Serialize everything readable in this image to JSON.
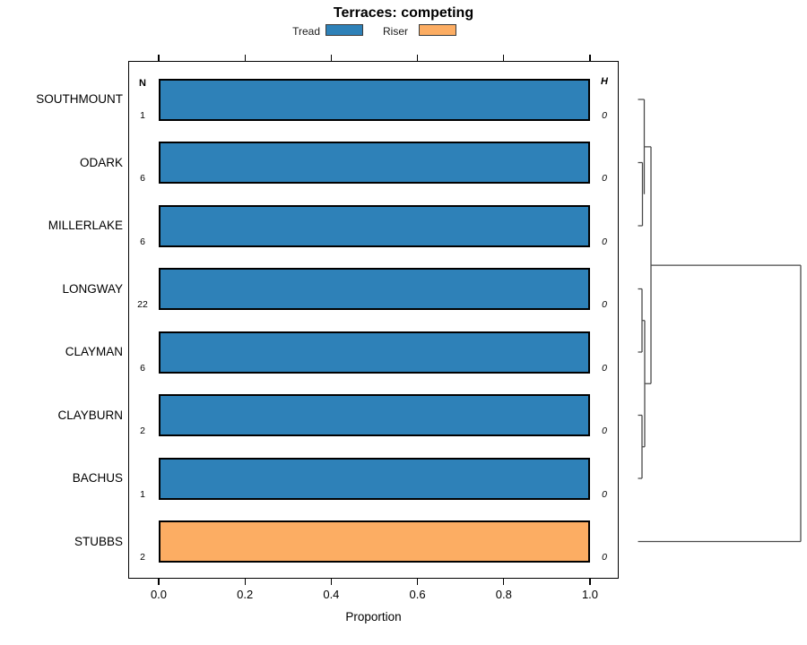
{
  "title": "Terraces: competing",
  "xlabel": "Proportion",
  "axis": {
    "x_ticks": [
      "0.0",
      "0.2",
      "0.4",
      "0.6",
      "0.8",
      "1.0"
    ]
  },
  "headers": {
    "n": "N",
    "h": "H"
  },
  "legend": {
    "items": [
      {
        "label": "Tread",
        "color": "#2E81B8"
      },
      {
        "label": "Riser",
        "color": "#FCAD63"
      }
    ]
  },
  "rows": [
    {
      "label": "SOUTHMOUNT",
      "n": "1",
      "h": "0",
      "series": "Tread",
      "value": 1.0
    },
    {
      "label": "ODARK",
      "n": "6",
      "h": "0",
      "series": "Tread",
      "value": 1.0
    },
    {
      "label": "MILLERLAKE",
      "n": "6",
      "h": "0",
      "series": "Tread",
      "value": 1.0
    },
    {
      "label": "LONGWAY",
      "n": "22",
      "h": "0",
      "series": "Tread",
      "value": 1.0
    },
    {
      "label": "CLAYMAN",
      "n": "6",
      "h": "0",
      "series": "Tread",
      "value": 1.0
    },
    {
      "label": "CLAYBURN",
      "n": "2",
      "h": "0",
      "series": "Tread",
      "value": 1.0
    },
    {
      "label": "BACHUS",
      "n": "1",
      "h": "0",
      "series": "Tread",
      "value": 1.0
    },
    {
      "label": "STUBBS",
      "n": "2",
      "h": "0",
      "series": "Riser",
      "value": 1.0
    }
  ],
  "chart_data": {
    "type": "bar",
    "orientation": "horizontal",
    "title": "Terraces: competing",
    "xlabel": "Proportion",
    "xlim": [
      0,
      1
    ],
    "x_ticks": [
      0.0,
      0.2,
      0.4,
      0.6,
      0.8,
      1.0
    ],
    "grid": false,
    "legend_position": "top",
    "categories": [
      "SOUTHMOUNT",
      "ODARK",
      "MILLERLAKE",
      "LONGWAY",
      "CLAYMAN",
      "CLAYBURN",
      "BACHUS",
      "STUBBS"
    ],
    "series": [
      {
        "name": "Tread",
        "color": "#2E81B8",
        "values": [
          1,
          1,
          1,
          1,
          1,
          1,
          1,
          0
        ]
      },
      {
        "name": "Riser",
        "color": "#FCAD63",
        "values": [
          0,
          0,
          0,
          0,
          0,
          0,
          0,
          1
        ]
      }
    ],
    "count_column": {
      "header": "N",
      "values": [
        1,
        6,
        6,
        22,
        6,
        2,
        1,
        2
      ]
    },
    "heterogeneity_column": {
      "header": "H",
      "values": [
        0,
        0,
        0,
        0,
        0,
        0,
        0,
        0
      ]
    },
    "dendrogram": {
      "position": "right",
      "merges": [
        {
          "members": [
            "ODARK",
            "MILLERLAKE"
          ],
          "height_rank": 1
        },
        {
          "members": [
            "SOUTHMOUNT",
            [
              "ODARK",
              "MILLERLAKE"
            ]
          ],
          "height_rank": 2
        },
        {
          "members": [
            "LONGWAY",
            "CLAYMAN"
          ],
          "height_rank": 1
        },
        {
          "members": [
            "CLAYBURN",
            "BACHUS"
          ],
          "height_rank": 1
        },
        {
          "members": [
            [
              "LONGWAY",
              "CLAYMAN"
            ],
            [
              "CLAYBURN",
              "BACHUS"
            ]
          ],
          "height_rank": 2
        },
        {
          "members": [
            [
              "SOUTHMOUNT",
              "ODARK",
              "MILLERLAKE"
            ],
            [
              "LONGWAY",
              "CLAYMAN",
              "CLAYBURN",
              "BACHUS"
            ]
          ],
          "height_rank": 3
        },
        {
          "members": [
            [
              "all-tread-group"
            ],
            "STUBBS"
          ],
          "height_rank": 4
        }
      ]
    }
  }
}
